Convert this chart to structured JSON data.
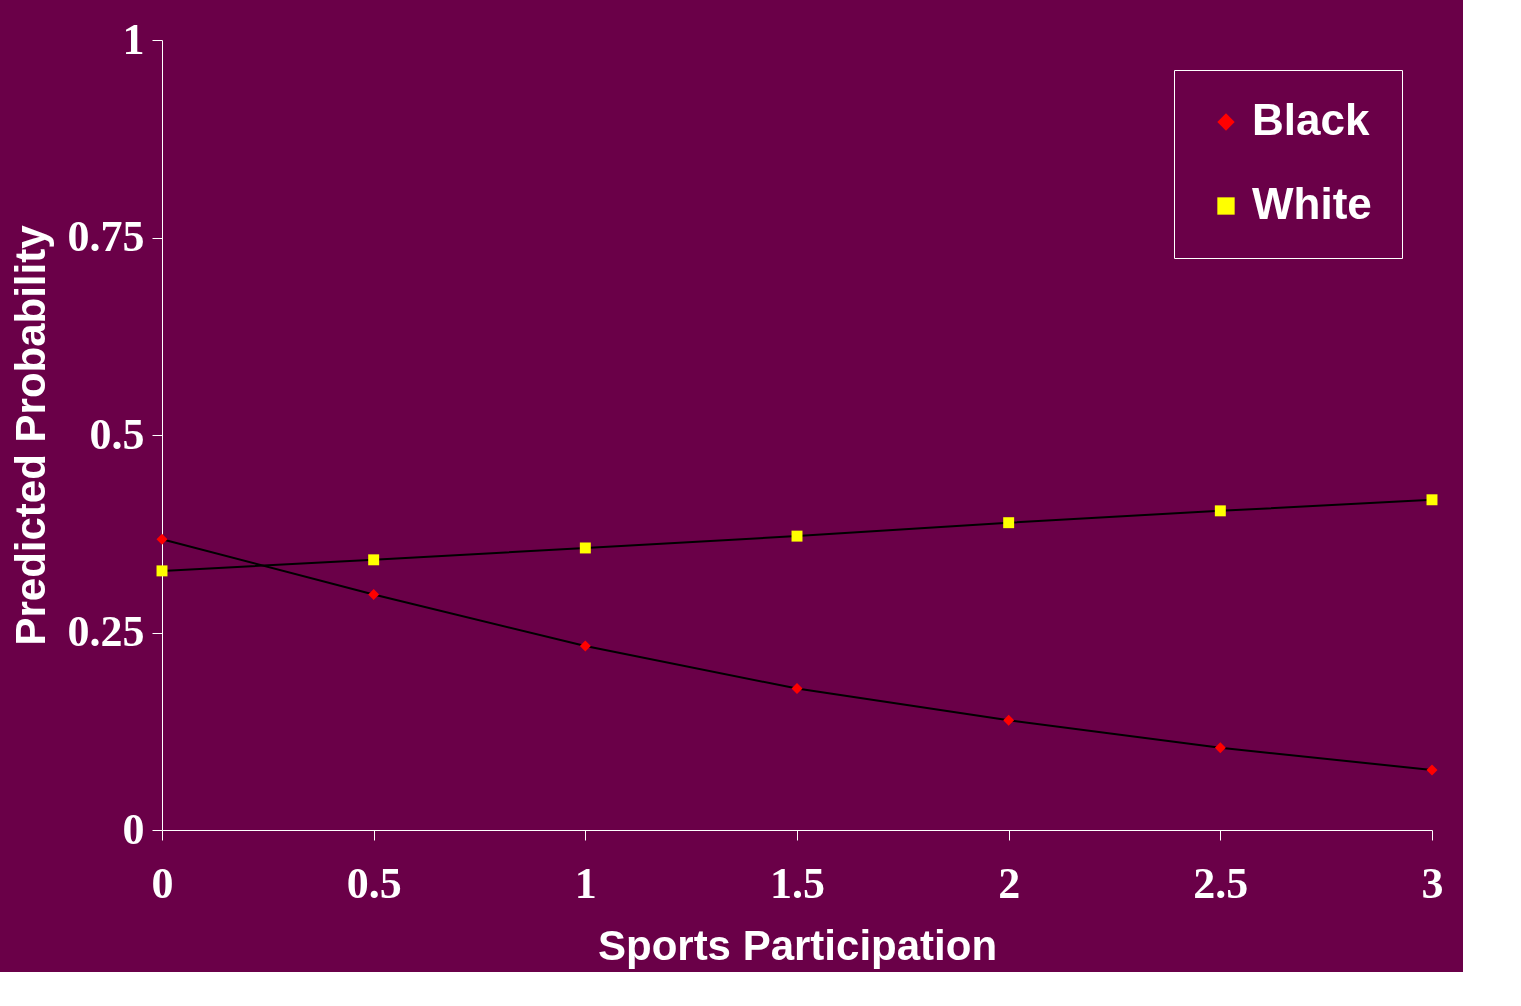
{
  "chart_data": {
    "type": "line",
    "xlabel": "Sports Participation",
    "ylabel": "Predicted Probability",
    "x": [
      0,
      0.5,
      1,
      1.5,
      2,
      2.5,
      3
    ],
    "series": [
      {
        "name": "Black",
        "color": "#ff0000",
        "marker": "diamond",
        "values": [
          0.368,
          0.298,
          0.233,
          0.179,
          0.139,
          0.104,
          0.076
        ]
      },
      {
        "name": "White",
        "color": "#ffff00",
        "marker": "square",
        "values": [
          0.328,
          0.342,
          0.357,
          0.372,
          0.389,
          0.404,
          0.418
        ]
      }
    ],
    "xlim": [
      0,
      3
    ],
    "xticks": [
      0,
      0.5,
      1,
      1.5,
      2,
      2.5,
      3
    ],
    "ylim": [
      0,
      1
    ],
    "yticks": [
      0,
      0.25,
      0.5,
      0.75,
      1
    ],
    "grid": false,
    "legend": "top right",
    "line_style": "solid"
  }
}
